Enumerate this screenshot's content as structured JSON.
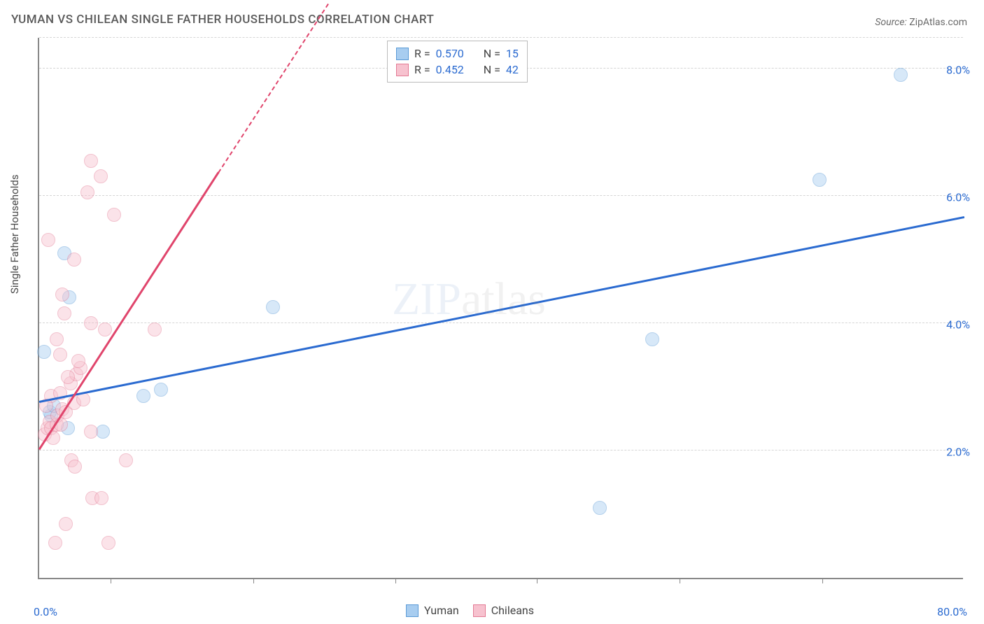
{
  "title": "YUMAN VS CHILEAN SINGLE FATHER HOUSEHOLDS CORRELATION CHART",
  "source_label": "Source: ",
  "source_value": "ZipAtlas.com",
  "y_axis_label": "Single Father Households",
  "watermark_left": "ZIP",
  "watermark_right": "atlas",
  "chart": {
    "type": "scatter",
    "background_color": "#ffffff",
    "grid_color": "#d5d5d5",
    "axis_color": "#888888",
    "xlim": [
      0,
      80
    ],
    "ylim": [
      0,
      8.5
    ],
    "x_ticks": {
      "labels": [
        "0.0%",
        "80.0%"
      ],
      "positions": [
        0,
        80
      ],
      "minor_positions": [
        6.2,
        18.5,
        30.8,
        43,
        55.4,
        67.7
      ]
    },
    "y_ticks": {
      "labels": [
        "2.0%",
        "4.0%",
        "6.0%",
        "8.0%"
      ],
      "positions": [
        2.0,
        4.0,
        6.0,
        8.0
      ]
    },
    "x_label_color": "#2a6ad0",
    "y_label_color": "#2a6ad0",
    "point_radius": 10,
    "point_opacity": 0.45,
    "series": [
      {
        "name": "Yuman",
        "color_fill": "#a8cdf0",
        "color_stroke": "#5a9ad6",
        "R": "0.570",
        "N": "15",
        "trend": {
          "x1": 0,
          "y1": 2.75,
          "x2": 80,
          "y2": 5.65,
          "color": "#2a6ad0",
          "width": 3,
          "dash": false
        },
        "points": [
          {
            "x": 2.2,
            "y": 5.1
          },
          {
            "x": 2.6,
            "y": 4.4
          },
          {
            "x": 0.4,
            "y": 3.55
          },
          {
            "x": 10.5,
            "y": 2.95
          },
          {
            "x": 9.0,
            "y": 2.85
          },
          {
            "x": 1.0,
            "y": 2.55
          },
          {
            "x": 2.5,
            "y": 2.35
          },
          {
            "x": 5.5,
            "y": 2.3
          },
          {
            "x": 0.9,
            "y": 2.6
          },
          {
            "x": 1.3,
            "y": 2.7
          },
          {
            "x": 20.2,
            "y": 4.25
          },
          {
            "x": 48.5,
            "y": 1.1
          },
          {
            "x": 53.0,
            "y": 3.75
          },
          {
            "x": 67.5,
            "y": 6.25
          },
          {
            "x": 74.5,
            "y": 7.9
          }
        ]
      },
      {
        "name": "Chileans",
        "color_fill": "#f7c2cf",
        "color_stroke": "#e37a94",
        "R": "0.452",
        "N": "42",
        "trend": {
          "x1": 0,
          "y1": 2.0,
          "x2": 15.5,
          "y2": 6.35,
          "color": "#e0456c",
          "width": 3,
          "dash_after_x": 15.5,
          "dash_end_x": 25.0,
          "dash_end_y": 9.0
        },
        "points": [
          {
            "x": 0.5,
            "y": 2.25
          },
          {
            "x": 0.7,
            "y": 2.35
          },
          {
            "x": 0.9,
            "y": 2.45
          },
          {
            "x": 1.0,
            "y": 2.35
          },
          {
            "x": 1.2,
            "y": 2.2
          },
          {
            "x": 1.5,
            "y": 2.4
          },
          {
            "x": 1.6,
            "y": 2.55
          },
          {
            "x": 1.9,
            "y": 2.4
          },
          {
            "x": 2.0,
            "y": 2.65
          },
          {
            "x": 2.3,
            "y": 2.6
          },
          {
            "x": 2.7,
            "y": 3.05
          },
          {
            "x": 3.0,
            "y": 2.75
          },
          {
            "x": 3.2,
            "y": 3.2
          },
          {
            "x": 3.6,
            "y": 3.3
          },
          {
            "x": 3.8,
            "y": 2.8
          },
          {
            "x": 0.8,
            "y": 5.3
          },
          {
            "x": 3.0,
            "y": 5.0
          },
          {
            "x": 2.0,
            "y": 4.45
          },
          {
            "x": 4.5,
            "y": 6.55
          },
          {
            "x": 4.2,
            "y": 6.05
          },
          {
            "x": 5.3,
            "y": 6.3
          },
          {
            "x": 6.5,
            "y": 5.7
          },
          {
            "x": 4.5,
            "y": 4.0
          },
          {
            "x": 5.7,
            "y": 3.9
          },
          {
            "x": 10.0,
            "y": 3.9
          },
          {
            "x": 4.5,
            "y": 2.3
          },
          {
            "x": 2.8,
            "y": 1.85
          },
          {
            "x": 3.1,
            "y": 1.75
          },
          {
            "x": 7.5,
            "y": 1.85
          },
          {
            "x": 4.6,
            "y": 1.25
          },
          {
            "x": 5.4,
            "y": 1.25
          },
          {
            "x": 2.3,
            "y": 0.85
          },
          {
            "x": 1.4,
            "y": 0.55
          },
          {
            "x": 6.0,
            "y": 0.55
          },
          {
            "x": 1.8,
            "y": 3.5
          },
          {
            "x": 1.5,
            "y": 3.75
          },
          {
            "x": 3.4,
            "y": 3.4
          },
          {
            "x": 2.5,
            "y": 3.15
          },
          {
            "x": 1.0,
            "y": 2.85
          },
          {
            "x": 1.8,
            "y": 2.9
          },
          {
            "x": 0.6,
            "y": 2.7
          },
          {
            "x": 2.2,
            "y": 4.15
          }
        ]
      }
    ]
  },
  "legend_bottom": [
    {
      "label": "Yuman",
      "fill": "#a8cdf0",
      "stroke": "#5a9ad6"
    },
    {
      "label": "Chileans",
      "fill": "#f7c2cf",
      "stroke": "#e37a94"
    }
  ]
}
